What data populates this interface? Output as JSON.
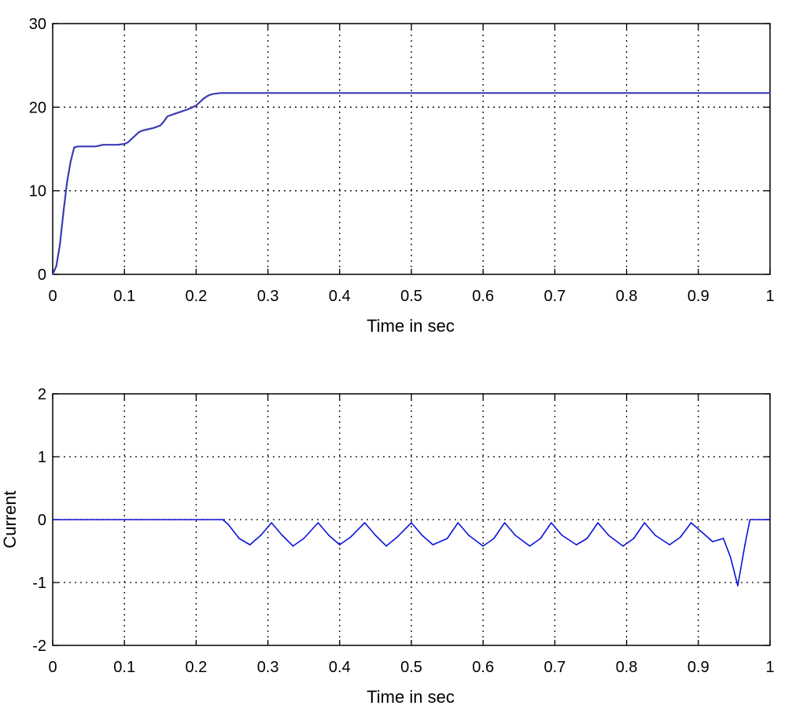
{
  "chart_data": [
    {
      "type": "line",
      "title": "",
      "xlabel": "Time in sec",
      "ylabel": "",
      "xlim": [
        0,
        1
      ],
      "ylim": [
        0,
        30
      ],
      "grid": true,
      "x_ticks": [
        "0",
        "0.1",
        "0.2",
        "0.3",
        "0.4",
        "0.5",
        "0.6",
        "0.7",
        "0.8",
        "0.9",
        "1"
      ],
      "y_ticks": [
        "0",
        "10",
        "20",
        "30"
      ],
      "color": "#3b3bb5",
      "series": [
        {
          "x": [
            0,
            0.005,
            0.01,
            0.015,
            0.02,
            0.025,
            0.03,
            0.035,
            0.045,
            0.06,
            0.07,
            0.08,
            0.09,
            0.1,
            0.105,
            0.11,
            0.115,
            0.12,
            0.125,
            0.13,
            0.14,
            0.15,
            0.155,
            0.16,
            0.17,
            0.18,
            0.19,
            0.2,
            0.205,
            0.21,
            0.215,
            0.22,
            0.225,
            0.23,
            0.235,
            0.25,
            0.3,
            0.5,
            0.7,
            1.0
          ],
          "y": [
            0,
            1,
            3.5,
            7.5,
            11,
            13.5,
            15.2,
            15.3,
            15.3,
            15.3,
            15.5,
            15.5,
            15.5,
            15.6,
            15.8,
            16.2,
            16.6,
            17.0,
            17.2,
            17.3,
            17.5,
            17.8,
            18.3,
            18.9,
            19.2,
            19.5,
            19.8,
            20.2,
            20.6,
            21.0,
            21.3,
            21.5,
            21.6,
            21.65,
            21.7,
            21.7,
            21.7,
            21.7,
            21.7,
            21.7
          ]
        }
      ]
    },
    {
      "type": "line",
      "title": "",
      "xlabel": "Time in sec",
      "ylabel": "Current",
      "xlim": [
        0,
        1
      ],
      "ylim": [
        -2,
        2
      ],
      "grid": true,
      "x_ticks": [
        "0",
        "0.1",
        "0.2",
        "0.3",
        "0.4",
        "0.5",
        "0.6",
        "0.7",
        "0.8",
        "0.9",
        "1"
      ],
      "y_ticks": [
        "-2",
        "-1",
        "0",
        "1",
        "2"
      ],
      "color": "#0a14d8",
      "series": [
        {
          "x": [
            0,
            0.237,
            0.245,
            0.26,
            0.275,
            0.29,
            0.305,
            0.32,
            0.335,
            0.35,
            0.37,
            0.385,
            0.4,
            0.415,
            0.435,
            0.45,
            0.465,
            0.48,
            0.5,
            0.515,
            0.53,
            0.55,
            0.565,
            0.58,
            0.6,
            0.615,
            0.63,
            0.645,
            0.665,
            0.68,
            0.695,
            0.71,
            0.73,
            0.745,
            0.76,
            0.775,
            0.795,
            0.81,
            0.825,
            0.84,
            0.86,
            0.875,
            0.89,
            0.905,
            0.92,
            0.935,
            0.945,
            0.955,
            0.965,
            0.972,
            1.0
          ],
          "y": [
            0,
            0,
            -0.08,
            -0.3,
            -0.4,
            -0.25,
            -0.05,
            -0.25,
            -0.42,
            -0.3,
            -0.05,
            -0.25,
            -0.4,
            -0.28,
            -0.05,
            -0.25,
            -0.42,
            -0.28,
            -0.05,
            -0.25,
            -0.4,
            -0.3,
            -0.05,
            -0.25,
            -0.42,
            -0.3,
            -0.05,
            -0.25,
            -0.42,
            -0.3,
            -0.05,
            -0.25,
            -0.4,
            -0.3,
            -0.05,
            -0.25,
            -0.42,
            -0.3,
            -0.05,
            -0.25,
            -0.4,
            -0.28,
            -0.05,
            -0.2,
            -0.35,
            -0.3,
            -0.6,
            -1.05,
            -0.4,
            0,
            0
          ]
        }
      ]
    }
  ]
}
